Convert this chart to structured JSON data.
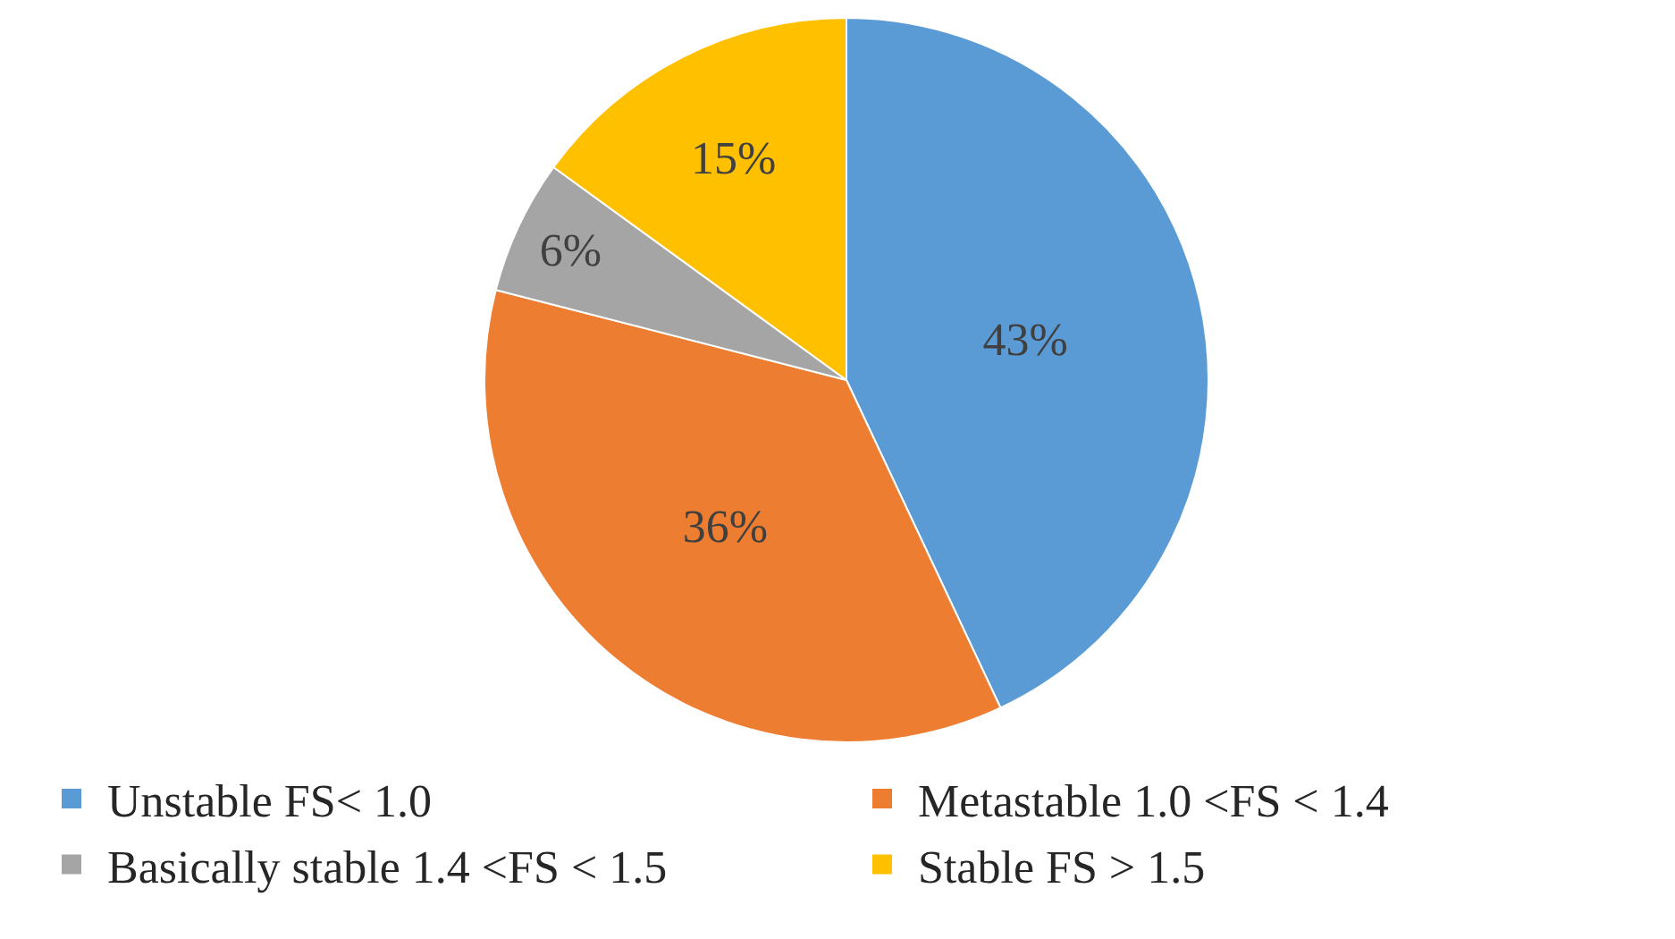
{
  "chart_data": {
    "type": "pie",
    "categories": [
      "Unstable FS< 1.0",
      "Metastable 1.0 <FS < 1.4",
      "Basically stable 1.4 <FS < 1.5",
      "Stable FS > 1.5"
    ],
    "values": [
      43,
      36,
      6,
      15
    ],
    "value_labels": [
      "43%",
      "36%",
      "6%",
      "15%"
    ],
    "colors": [
      "#5b9bd5",
      "#ed7d31",
      "#a5a5a5",
      "#ffc000"
    ],
    "legend": "bottom"
  }
}
